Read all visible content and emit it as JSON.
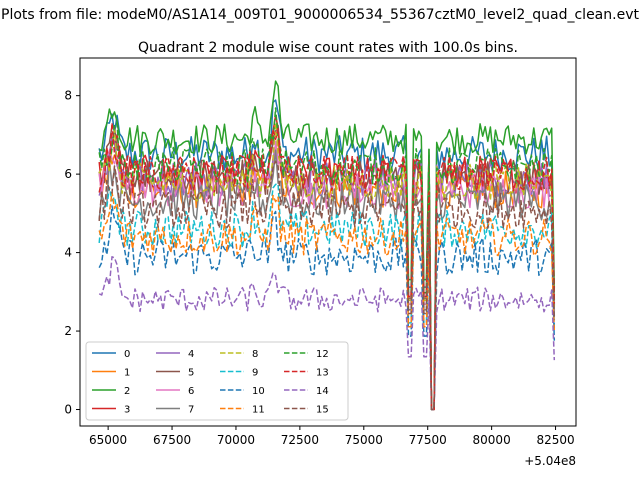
{
  "figure": {
    "suptitle": "Plots from file: modeM0/AS1A14_009T01_9000006534_55367cztM0_level2_quad_clean.evt",
    "title": "Quadrant 2 module wise count rates with 100.0s bins.",
    "x_offset_label": "+5.04e8"
  },
  "chart_data": {
    "type": "line",
    "title": "Quadrant 2 module wise count rates with 100.0s bins.",
    "xlabel": "",
    "ylabel": "",
    "x_offset": 504000000,
    "xlim": [
      63900,
      83300
    ],
    "ylim": [
      -0.42,
      8.96
    ],
    "xticks": [
      65000,
      67500,
      70000,
      72500,
      75000,
      77500,
      80000,
      82500
    ],
    "xtick_labels": [
      "65000",
      "67500",
      "70000",
      "72500",
      "75000",
      "77500",
      "80000",
      "82500"
    ],
    "yticks": [
      0,
      2,
      4,
      6,
      8
    ],
    "ytick_labels": [
      "0",
      "2",
      "4",
      "6",
      "8"
    ],
    "x_start": 64650,
    "x_end": 82450,
    "bin_size": 100,
    "gap": {
      "start": 77600,
      "end": 77800,
      "value": 0
    },
    "dips": [
      76800,
      77400
    ],
    "legend_position": "lower-left",
    "legend_columns": 4,
    "series": [
      {
        "name": "0",
        "color": "#1f77b4",
        "dash": "solid",
        "mean": 6.5,
        "noise": 0.3
      },
      {
        "name": "1",
        "color": "#ff7f0e",
        "dash": "solid",
        "mean": 5.6,
        "noise": 0.3
      },
      {
        "name": "2",
        "color": "#2ca02c",
        "dash": "solid",
        "mean": 6.9,
        "noise": 0.25
      },
      {
        "name": "3",
        "color": "#d62728",
        "dash": "solid",
        "mean": 6.0,
        "noise": 0.3
      },
      {
        "name": "4",
        "color": "#9467bd",
        "dash": "solid",
        "mean": 5.9,
        "noise": 0.3
      },
      {
        "name": "5",
        "color": "#8c564b",
        "dash": "solid",
        "mean": 5.9,
        "noise": 0.3
      },
      {
        "name": "6",
        "color": "#e377c2",
        "dash": "solid",
        "mean": 5.6,
        "noise": 0.3
      },
      {
        "name": "7",
        "color": "#7f7f7f",
        "dash": "solid",
        "mean": 5.3,
        "noise": 0.3
      },
      {
        "name": "8",
        "color": "#bcbd22",
        "dash": "dashed",
        "mean": 5.8,
        "noise": 0.3
      },
      {
        "name": "9",
        "color": "#17becf",
        "dash": "dashed",
        "mean": 4.6,
        "noise": 0.3
      },
      {
        "name": "10",
        "color": "#1f77b4",
        "dash": "dashed",
        "mean": 3.9,
        "noise": 0.3
      },
      {
        "name": "11",
        "color": "#ff7f0e",
        "dash": "dashed",
        "mean": 4.4,
        "noise": 0.3
      },
      {
        "name": "12",
        "color": "#2ca02c",
        "dash": "dashed",
        "mean": 6.2,
        "noise": 0.3
      },
      {
        "name": "13",
        "color": "#d62728",
        "dash": "dashed",
        "mean": 6.0,
        "noise": 0.3
      },
      {
        "name": "14",
        "color": "#9467bd",
        "dash": "dashed",
        "mean": 2.8,
        "noise": 0.2
      },
      {
        "name": "15",
        "color": "#8c564b",
        "dash": "dashed",
        "mean": 5.1,
        "noise": 0.3
      }
    ]
  }
}
